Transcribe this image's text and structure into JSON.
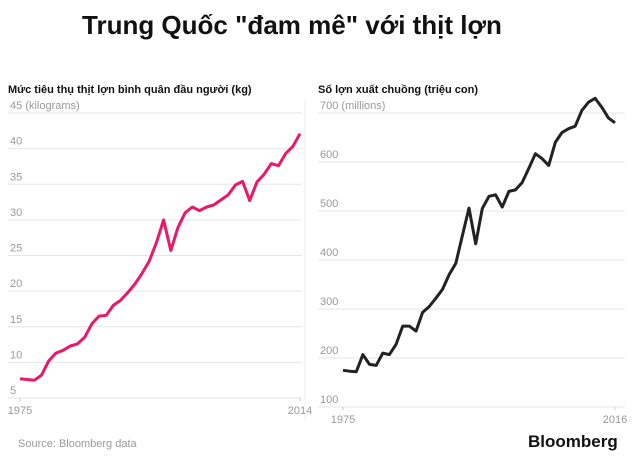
{
  "title": "Trung Quốc \"đam mê\" với thịt lợn",
  "chart_data": [
    {
      "type": "line",
      "title": "Mức tiêu thụ thịt lợn bình quân đầu người (kg)",
      "x": [
        1975,
        1976,
        1977,
        1978,
        1979,
        1980,
        1981,
        1982,
        1983,
        1984,
        1985,
        1986,
        1987,
        1988,
        1989,
        1990,
        1991,
        1992,
        1993,
        1994,
        1995,
        1996,
        1997,
        1998,
        1999,
        2000,
        2001,
        2002,
        2003,
        2004,
        2005,
        2006,
        2007,
        2008,
        2009,
        2010,
        2011,
        2012,
        2013,
        2014
      ],
      "series": [
        {
          "color": "#e8196b",
          "values": [
            7.7,
            7.6,
            7.5,
            8.2,
            10.2,
            11.3,
            11.7,
            12.3,
            12.6,
            13.5,
            15.4,
            16.5,
            16.6,
            18.0,
            18.7,
            19.8,
            21.0,
            22.5,
            24.2,
            26.8,
            30.0,
            25.7,
            28.9,
            31.0,
            31.8,
            31.3,
            31.8,
            32.1,
            32.8,
            33.5,
            34.9,
            35.4,
            32.7,
            35.3,
            36.4,
            37.9,
            37.6,
            39.3,
            40.3,
            42.1
          ]
        }
      ],
      "xlim": [
        1975,
        2014
      ],
      "xticks": [
        1975,
        2014
      ],
      "ylim": [
        5,
        45
      ],
      "yticks": [
        5,
        10,
        15,
        20,
        25,
        30,
        35,
        40,
        {
          "value": 45,
          "label": "45 (kilograms)"
        }
      ],
      "grid": true
    },
    {
      "type": "line",
      "title": "Số lợn xuất chuồng (triệu con)",
      "x": [
        1975,
        1976,
        1977,
        1978,
        1979,
        1980,
        1981,
        1982,
        1983,
        1984,
        1985,
        1986,
        1987,
        1988,
        1989,
        1990,
        1991,
        1992,
        1993,
        1994,
        1995,
        1996,
        1997,
        1998,
        1999,
        2000,
        2001,
        2002,
        2003,
        2004,
        2005,
        2006,
        2007,
        2008,
        2009,
        2010,
        2011,
        2012,
        2013,
        2014,
        2015,
        2016
      ],
      "series": [
        {
          "color": "#222222",
          "values": [
            175,
            173,
            172,
            207,
            187,
            185,
            210,
            207,
            228,
            265,
            265,
            255,
            293,
            305,
            322,
            340,
            370,
            393,
            450,
            506,
            433,
            505,
            530,
            533,
            508,
            540,
            543,
            558,
            587,
            617,
            607,
            593,
            640,
            660,
            668,
            673,
            705,
            722,
            730,
            712,
            690,
            680
          ]
        }
      ],
      "xlim": [
        1975,
        2016
      ],
      "xticks": [
        1975,
        2016
      ],
      "ylim": [
        100,
        700
      ],
      "yticks": [
        100,
        200,
        300,
        400,
        500,
        600,
        {
          "value": 700,
          "label": "700 (millions)"
        }
      ],
      "grid": true
    }
  ],
  "source": "Source: Bloomberg data",
  "brand": "Bloomberg"
}
